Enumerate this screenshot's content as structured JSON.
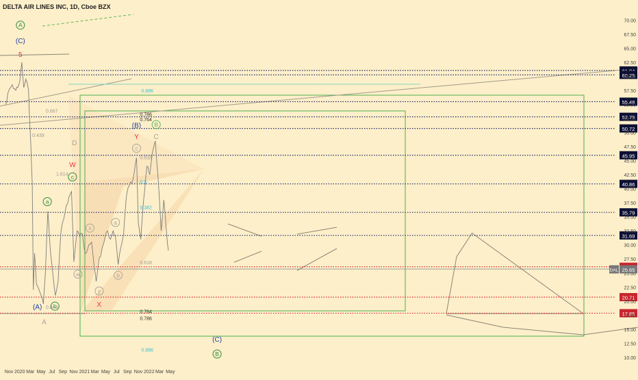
{
  "header": {
    "title": "DELTA AIR LINES INC, 1D, Cboe BZX"
  },
  "colors": {
    "background": "#fdefc9",
    "price_line": "#7d7d7d",
    "level_line": "#1f2a6b",
    "red_level": "#d7262f",
    "green_box": "#4caf50",
    "fib_green": "#5cb85c",
    "teal_line": "#7fd4c4",
    "wave_red": "#e8324a",
    "wave_blue": "#1c3f9e",
    "wave_green": "#2f8a3b",
    "faint": "#a9a59a",
    "label_dark_bg": "#0d1033",
    "label_red_bg": "#c9252d",
    "label_price_bg": "#777777"
  },
  "chart_data": {
    "type": "line",
    "title": "DELTA AIR LINES INC, 1D, Cboe BZX",
    "symbol": "DAL",
    "last_price": 25.65,
    "ylim": [
      9.5,
      71.5
    ],
    "y_ticks": [
      10.0,
      12.5,
      15.0,
      17.5,
      20.0,
      22.5,
      25.0,
      27.5,
      30.0,
      32.5,
      35.0,
      37.5,
      40.0,
      42.5,
      45.0,
      47.5,
      50.0,
      52.5,
      55.0,
      57.5,
      60.0,
      62.5,
      65.0,
      67.5,
      70.0
    ],
    "x_ticks": [
      "Nov",
      "2020",
      "Mar",
      "May",
      "Jul",
      "Sep",
      "Nov",
      "2021",
      "Mar",
      "May",
      "Jul",
      "Sep",
      "Nov",
      "2022",
      "Mar",
      "May"
    ],
    "x_tick_dates": [
      "2019-11-01",
      "2020-01-01",
      "2020-03-01",
      "2020-05-01",
      "2020-07-01",
      "2020-09-01",
      "2020-11-01",
      "2021-01-01",
      "2021-03-01",
      "2021-05-01",
      "2021-07-01",
      "2021-09-01",
      "2021-11-01",
      "2022-01-01",
      "2022-03-01",
      "2022-05-01"
    ],
    "price_series": [
      [
        "2019-10-15",
        55.0
      ],
      [
        "2019-11-01",
        57.5
      ],
      [
        "2019-11-20",
        58.5
      ],
      [
        "2019-12-10",
        57.5
      ],
      [
        "2020-01-01",
        59.0
      ],
      [
        "2020-01-13",
        62.5
      ],
      [
        "2020-01-24",
        58.0
      ],
      [
        "2020-02-05",
        59.5
      ],
      [
        "2020-02-20",
        57.5
      ],
      [
        "2020-02-28",
        51.0
      ],
      [
        "2020-03-05",
        47.0
      ],
      [
        "2020-03-12",
        41.0
      ],
      [
        "2020-03-18",
        22.0
      ],
      [
        "2020-03-25",
        28.5
      ],
      [
        "2020-04-05",
        23.0
      ],
      [
        "2020-04-20",
        22.0
      ],
      [
        "2020-05-01",
        21.0
      ],
      [
        "2020-05-14",
        19.5
      ],
      [
        "2020-05-25",
        25.0
      ],
      [
        "2020-06-08",
        36.0
      ],
      [
        "2020-06-22",
        29.0
      ],
      [
        "2020-07-06",
        25.0
      ],
      [
        "2020-07-20",
        21.0
      ],
      [
        "2020-08-05",
        23.5
      ],
      [
        "2020-08-20",
        32.0
      ],
      [
        "2020-09-05",
        34.5
      ],
      [
        "2020-09-20",
        37.0
      ],
      [
        "2020-10-05",
        38.5
      ],
      [
        "2020-10-20",
        39.5
      ],
      [
        "2020-11-02",
        27.0
      ],
      [
        "2020-11-20",
        32.5
      ],
      [
        "2020-12-05",
        31.5
      ],
      [
        "2020-12-20",
        32.0
      ],
      [
        "2021-01-05",
        28.5
      ],
      [
        "2021-01-25",
        30.0
      ],
      [
        "2021-02-10",
        30.5
      ],
      [
        "2021-02-25",
        26.0
      ],
      [
        "2021-03-08",
        23.5
      ],
      [
        "2021-03-22",
        27.0
      ],
      [
        "2021-04-08",
        29.0
      ],
      [
        "2021-04-25",
        31.0
      ],
      [
        "2021-05-10",
        32.5
      ],
      [
        "2021-05-28",
        31.0
      ],
      [
        "2021-06-12",
        32.5
      ],
      [
        "2021-06-25",
        31.5
      ],
      [
        "2021-07-10",
        26.5
      ],
      [
        "2021-07-25",
        29.5
      ],
      [
        "2021-08-10",
        32.0
      ],
      [
        "2021-08-25",
        38.5
      ],
      [
        "2021-09-10",
        40.5
      ],
      [
        "2021-09-25",
        41.0
      ],
      [
        "2021-10-10",
        43.0
      ],
      [
        "2021-10-22",
        45.5
      ],
      [
        "2021-11-01",
        34.0
      ],
      [
        "2021-11-15",
        31.0
      ],
      [
        "2021-12-01",
        38.0
      ],
      [
        "2021-12-20",
        44.0
      ],
      [
        "2022-01-05",
        42.5
      ],
      [
        "2022-01-20",
        46.5
      ],
      [
        "2022-02-05",
        48.5
      ],
      [
        "2022-02-25",
        40.0
      ],
      [
        "2022-03-10",
        32.5
      ],
      [
        "2022-03-25",
        38.0
      ],
      [
        "2022-04-10",
        32.0
      ],
      [
        "2022-04-20",
        29.0
      ]
    ],
    "horizontal_levels": [
      {
        "price": 61.04,
        "label": "61.04",
        "style": "dotted",
        "color": "level"
      },
      {
        "price": 60.25,
        "label": "60.25",
        "style": "dotted",
        "color": "level"
      },
      {
        "price": 55.48,
        "label": "55.48",
        "style": "dotted",
        "color": "level"
      },
      {
        "price": 52.79,
        "label": "52.79",
        "style": "dotted",
        "color": "level"
      },
      {
        "price": 50.72,
        "label": "50.72",
        "style": "dotted",
        "color": "level"
      },
      {
        "price": 45.95,
        "label": "45.95",
        "style": "dotted",
        "color": "level"
      },
      {
        "price": 40.86,
        "label": "40.86",
        "style": "dotted",
        "color": "level"
      },
      {
        "price": 35.79,
        "label": "35.79",
        "style": "dotted",
        "color": "level"
      },
      {
        "price": 31.69,
        "label": "31.69",
        "style": "dotted",
        "color": "level"
      },
      {
        "price": 26.11,
        "label": "26.11",
        "style": "dotted",
        "color": "red"
      },
      {
        "price": 20.71,
        "label": "20.71",
        "style": "dotted",
        "color": "red"
      },
      {
        "price": 17.85,
        "label": "17.85",
        "style": "dotted",
        "color": "red"
      }
    ],
    "fib_labels": [
      {
        "text": "0.886",
        "date": "2021-11-18",
        "price": 57.5,
        "color": "fib"
      },
      {
        "text": "0.786",
        "date": "2021-11-10",
        "price": 53.3,
        "color": "dark"
      },
      {
        "text": "0.764",
        "date": "2021-11-10",
        "price": 52.4,
        "color": "dark"
      },
      {
        "text": "0.618",
        "date": "2021-11-10",
        "price": 45.6,
        "color": "faint"
      },
      {
        "text": "0.5",
        "date": "2021-11-10",
        "price": 41.3,
        "color": "fib"
      },
      {
        "text": "0.382",
        "date": "2021-11-10",
        "price": 36.7,
        "color": "fib"
      },
      {
        "text": "0.618",
        "date": "2021-11-10",
        "price": 26.9,
        "color": "faint"
      },
      {
        "text": "0.764",
        "date": "2021-11-10",
        "price": 18.2,
        "color": "dark"
      },
      {
        "text": "0.786",
        "date": "2021-11-10",
        "price": 17.0,
        "color": "dark"
      },
      {
        "text": "0.886",
        "date": "2021-11-18",
        "price": 11.4,
        "color": "fib"
      },
      {
        "text": "0.667",
        "date": "2020-05-28",
        "price": 53.9,
        "color": "faint"
      },
      {
        "text": "0.439",
        "date": "2020-03-12",
        "price": 49.6,
        "color": "faint"
      },
      {
        "text": "1.614",
        "date": "2020-07-25",
        "price": 42.7,
        "color": "faint"
      },
      {
        "text": "0.845",
        "date": "2020-05-28",
        "price": 19.0,
        "color": "faint"
      }
    ],
    "wave_labels": [
      {
        "text": "A",
        "date": "2020-01-05",
        "price": 69.1,
        "style": "circle",
        "color": "green"
      },
      {
        "text": "(C)",
        "date": "2020-01-05",
        "price": 66.3,
        "style": "plain",
        "color": "blue"
      },
      {
        "text": "5",
        "date": "2020-01-05",
        "price": 63.9,
        "style": "plain",
        "color": "red"
      },
      {
        "text": "a",
        "date": "2020-06-05",
        "price": 37.7,
        "style": "circle",
        "color": "green"
      },
      {
        "text": "b",
        "date": "2020-07-18",
        "price": 19.1,
        "style": "circle",
        "color": "green"
      },
      {
        "text": "(A)",
        "date": "2020-04-10",
        "price": 19.0,
        "style": "plain",
        "color": "blue"
      },
      {
        "text": "A",
        "date": "2020-05-18",
        "price": 16.3,
        "style": "plain",
        "color": "faint"
      },
      {
        "text": "W",
        "date": "2020-10-25",
        "price": 44.3,
        "style": "plain",
        "color": "red"
      },
      {
        "text": "c",
        "date": "2020-10-25",
        "price": 42.1,
        "style": "circle",
        "color": "green"
      },
      {
        "text": "D",
        "date": "2020-11-05",
        "price": 48.2,
        "style": "plain",
        "color": "faint"
      },
      {
        "text": "w",
        "date": "2020-11-25",
        "price": 24.8,
        "style": "circle",
        "color": "faint"
      },
      {
        "text": "x",
        "date": "2021-02-01",
        "price": 33.0,
        "style": "circle",
        "color": "faint"
      },
      {
        "text": "X",
        "date": "2021-03-25",
        "price": 19.4,
        "style": "plain",
        "color": "red"
      },
      {
        "text": "y",
        "date": "2021-03-25",
        "price": 21.8,
        "style": "circle",
        "color": "faint"
      },
      {
        "text": "a",
        "date": "2021-06-25",
        "price": 34.0,
        "style": "circle",
        "color": "faint"
      },
      {
        "text": "b",
        "date": "2021-07-10",
        "price": 24.6,
        "style": "circle",
        "color": "faint"
      },
      {
        "text": "(B)",
        "date": "2021-10-22",
        "price": 51.3,
        "style": "plain",
        "color": "blue"
      },
      {
        "text": "Y",
        "date": "2021-10-22",
        "price": 49.3,
        "style": "plain",
        "color": "red"
      },
      {
        "text": "c",
        "date": "2021-10-22",
        "price": 47.2,
        "style": "circle",
        "color": "faint"
      },
      {
        "text": "B",
        "date": "2022-02-10",
        "price": 51.4,
        "style": "circle",
        "color": "fib"
      },
      {
        "text": "C",
        "date": "2022-02-10",
        "price": 49.3,
        "style": "plain",
        "color": "faint"
      },
      {
        "text": "(C)",
        "date": "2023-01-20",
        "price": 13.2,
        "style": "plain",
        "color": "blue"
      },
      {
        "text": "B",
        "date": "2023-01-20",
        "price": 10.6,
        "style": "circle",
        "color": "green"
      }
    ],
    "grid": false,
    "legend": "none"
  }
}
